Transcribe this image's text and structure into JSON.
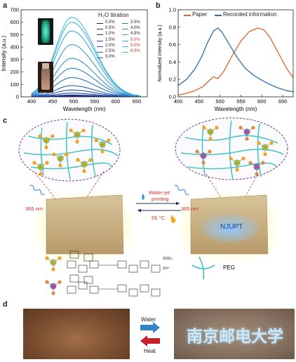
{
  "panels": {
    "a": "a",
    "b": "b",
    "c": "c",
    "d": "d"
  },
  "chart_data": [
    {
      "type": "line",
      "panel": "a",
      "xlabel": "Wavelength (nm)",
      "ylabel": "Intensity (a.u.)",
      "xlim": [
        375,
        675
      ],
      "ylim": [
        0,
        700
      ],
      "xticks": [
        400,
        450,
        500,
        550,
        600,
        650
      ],
      "yticks": [
        0,
        100,
        200,
        300,
        400,
        500,
        600,
        700
      ],
      "legend_title": "H₂O titration",
      "legend_entries": [
        "0.0%",
        "0.5%",
        "1.0%",
        "1.5%",
        "2.0%",
        "2.5%",
        "3.0%",
        "3.5%",
        "4.0%",
        "4.5%",
        "5.0%",
        "5.5%",
        "6.0%"
      ],
      "series": [
        {
          "name": "0.0%",
          "peak": 4,
          "color": "#1a1a8c"
        },
        {
          "name": "0.5%",
          "peak": 8,
          "color": "#1c2a96"
        },
        {
          "name": "1.0%",
          "peak": 15,
          "color": "#1e3aa0"
        },
        {
          "name": "1.5%",
          "peak": 30,
          "color": "#2048a8"
        },
        {
          "name": "2.0%",
          "peak": 55,
          "color": "#2356b0"
        },
        {
          "name": "2.5%",
          "peak": 90,
          "color": "#2664b8"
        },
        {
          "name": "3.0%",
          "peak": 155,
          "color": "#2a72c0"
        },
        {
          "name": "3.5%",
          "peak": 230,
          "color": "#2e82c8"
        },
        {
          "name": "4.0%",
          "peak": 310,
          "color": "#3392cf"
        },
        {
          "name": "4.5%",
          "peak": 420,
          "color": "#38a0d4"
        },
        {
          "name": "5.0%",
          "peak": 530,
          "color": "#3daad8"
        },
        {
          "name": "5.5%",
          "peak": 600,
          "color": "#42b2da"
        },
        {
          "name": "6.0%",
          "peak": 640,
          "color": "#46b8dc"
        }
      ],
      "peak_wavelength": 495
    },
    {
      "type": "line",
      "panel": "b",
      "xlabel": "Wavelength (nm)",
      "ylabel": "Normalized intensity (a.u.)",
      "xlim": [
        400,
        675
      ],
      "ylim": [
        0,
        1.0
      ],
      "xticks": [
        400,
        450,
        500,
        550,
        600,
        650
      ],
      "yticks": [
        0.0,
        0.2,
        0.4,
        0.6,
        0.8,
        1.0
      ],
      "series": [
        {
          "name": "Paper",
          "color": "#e0622a",
          "x": [
            400,
            420,
            440,
            460,
            475,
            485,
            495,
            510,
            530,
            550,
            570,
            590,
            605,
            620,
            640,
            660,
            675
          ],
          "y": [
            0.02,
            0.04,
            0.07,
            0.12,
            0.19,
            0.23,
            0.21,
            0.3,
            0.48,
            0.64,
            0.75,
            0.79,
            0.77,
            0.68,
            0.5,
            0.32,
            0.22
          ]
        },
        {
          "name": "Recorded information",
          "color": "#2e6da4",
          "x": [
            400,
            420,
            440,
            455,
            470,
            485,
            495,
            505,
            520,
            540,
            560,
            580,
            600,
            620,
            640,
            660,
            675
          ],
          "y": [
            0.13,
            0.2,
            0.32,
            0.45,
            0.62,
            0.76,
            0.79,
            0.74,
            0.62,
            0.46,
            0.33,
            0.25,
            0.19,
            0.14,
            0.1,
            0.07,
            0.06
          ]
        }
      ]
    }
  ],
  "panel_c": {
    "wavelength_label_left": "365 nm",
    "wavelength_label_right": "365 nm",
    "forward_label_1": "Water-jet",
    "forward_label_2": "printing",
    "reverse_label": "65 °C",
    "paper_text": "NJUPT",
    "zn_label": "Zn",
    "counterion": "2ClO₄⁻",
    "zn_charge": "Zn²⁺",
    "peg_label": "PEG",
    "colors": {
      "water_drop": "#3d9be0",
      "flame": "#f2a51e",
      "network": "#4cc3c6"
    }
  },
  "panel_d": {
    "water_label": "Water",
    "heat_label": "Heat",
    "written_text": "南京邮电大学",
    "colors": {
      "water_arrow": "#2e86c9",
      "heat_arrow": "#c8202b"
    }
  }
}
